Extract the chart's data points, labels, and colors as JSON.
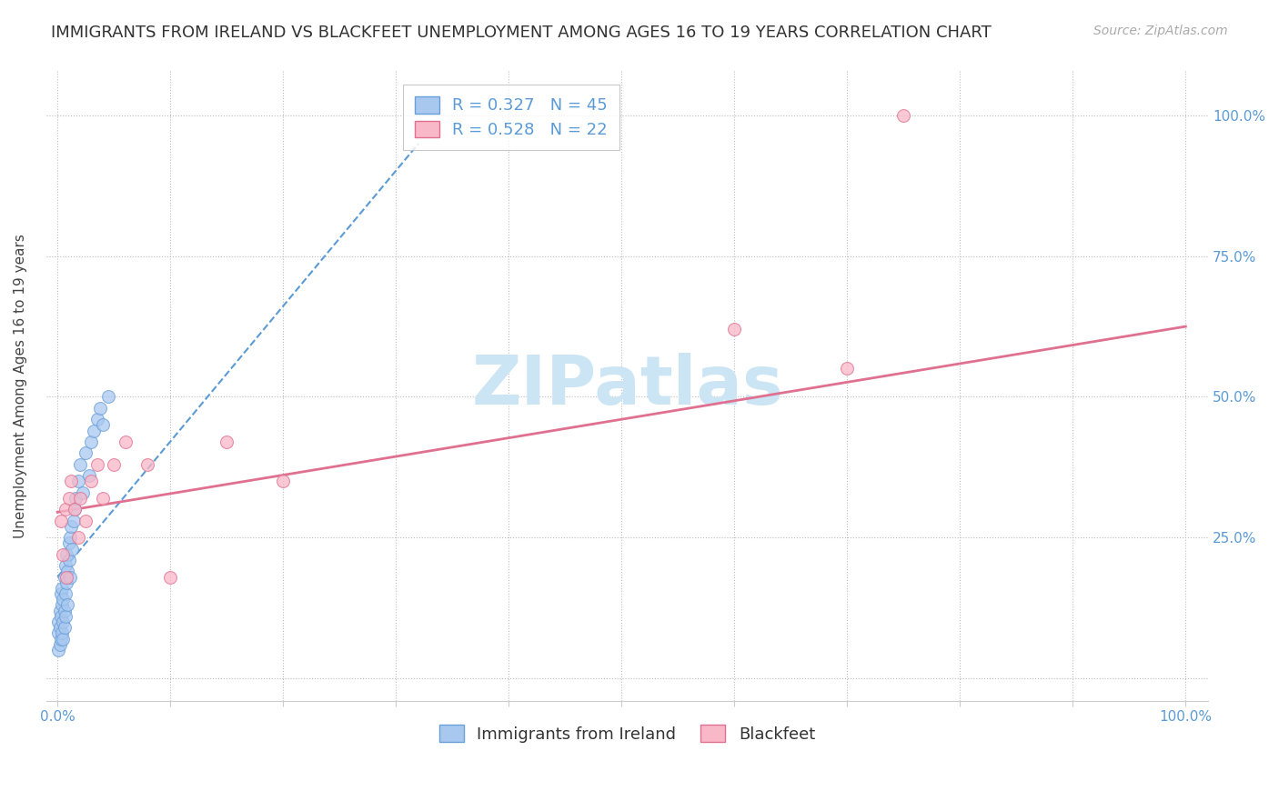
{
  "title": "IMMIGRANTS FROM IRELAND VS BLACKFEET UNEMPLOYMENT AMONG AGES 16 TO 19 YEARS CORRELATION CHART",
  "source": "Source: ZipAtlas.com",
  "ylabel": "Unemployment Among Ages 16 to 19 years",
  "xlim": [
    -0.01,
    1.02
  ],
  "ylim": [
    -0.04,
    1.08
  ],
  "ireland_R": 0.327,
  "ireland_N": 45,
  "blackfeet_R": 0.528,
  "blackfeet_N": 22,
  "ireland_color": "#a8c8f0",
  "ireland_edge": "#6a9fd8",
  "blackfeet_color": "#f9b8c8",
  "blackfeet_edge": "#e07090",
  "ireland_line_color": "#5b9bd5",
  "blackfeet_line_color": "#e07090",
  "ireland_scatter_x": [
    0.0005,
    0.001,
    0.001,
    0.002,
    0.002,
    0.002,
    0.003,
    0.003,
    0.003,
    0.004,
    0.004,
    0.004,
    0.005,
    0.005,
    0.005,
    0.006,
    0.006,
    0.006,
    0.007,
    0.007,
    0.007,
    0.008,
    0.008,
    0.009,
    0.009,
    0.01,
    0.01,
    0.011,
    0.011,
    0.012,
    0.013,
    0.014,
    0.015,
    0.016,
    0.018,
    0.02,
    0.022,
    0.025,
    0.028,
    0.03,
    0.032,
    0.035,
    0.038,
    0.04,
    0.045
  ],
  "ireland_scatter_y": [
    0.05,
    0.08,
    0.1,
    0.12,
    0.06,
    0.09,
    0.15,
    0.07,
    0.11,
    0.13,
    0.08,
    0.16,
    0.1,
    0.14,
    0.07,
    0.18,
    0.12,
    0.09,
    0.2,
    0.15,
    0.11,
    0.22,
    0.17,
    0.19,
    0.13,
    0.24,
    0.21,
    0.25,
    0.18,
    0.27,
    0.23,
    0.28,
    0.3,
    0.32,
    0.35,
    0.38,
    0.33,
    0.4,
    0.36,
    0.42,
    0.44,
    0.46,
    0.48,
    0.45,
    0.5
  ],
  "blackfeet_scatter_x": [
    0.003,
    0.005,
    0.007,
    0.008,
    0.01,
    0.012,
    0.015,
    0.018,
    0.02,
    0.025,
    0.03,
    0.035,
    0.04,
    0.05,
    0.06,
    0.08,
    0.1,
    0.15,
    0.2,
    0.6,
    0.7,
    0.75
  ],
  "blackfeet_scatter_y": [
    0.28,
    0.22,
    0.3,
    0.18,
    0.32,
    0.35,
    0.3,
    0.25,
    0.32,
    0.28,
    0.35,
    0.38,
    0.32,
    0.38,
    0.42,
    0.38,
    0.18,
    0.42,
    0.35,
    0.62,
    0.55,
    1.0
  ],
  "ireland_trend_x0": 0.0,
  "ireland_trend_x1": 0.32,
  "ireland_trend_y0": 0.18,
  "ireland_trend_y1": 0.95,
  "blackfeet_trend_x0": 0.0,
  "blackfeet_trend_x1": 1.0,
  "blackfeet_trend_y0": 0.295,
  "blackfeet_trend_y1": 0.625,
  "watermark": "ZIPatlas",
  "watermark_color": "#cce5f5",
  "title_fontsize": 13,
  "axis_label_fontsize": 11,
  "tick_fontsize": 11,
  "legend_fontsize": 13,
  "source_fontsize": 10
}
